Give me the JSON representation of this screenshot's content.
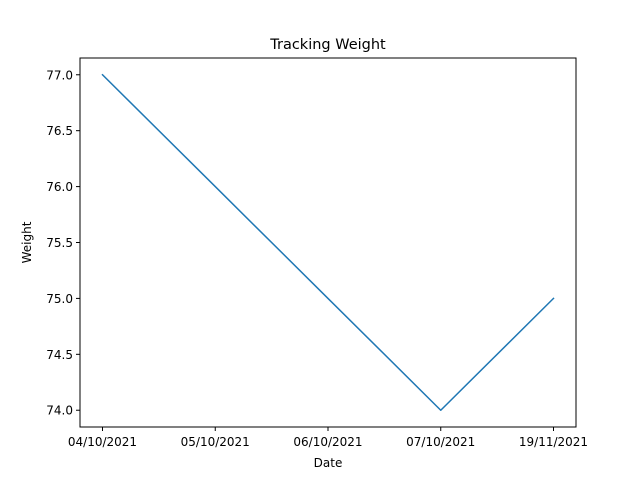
{
  "chart_data": {
    "type": "line",
    "title": "Tracking Weight",
    "xlabel": "Date",
    "ylabel": "Weight",
    "categories": [
      "04/10/2021",
      "05/10/2021",
      "06/10/2021",
      "07/10/2021",
      "19/11/2021"
    ],
    "series": [
      {
        "values": [
          77.0,
          76.0,
          75.0,
          74.0,
          75.0
        ]
      }
    ],
    "ylim": [
      73.85,
      77.15
    ],
    "yticks": [
      "74.0",
      "74.5",
      "75.0",
      "75.5",
      "76.0",
      "76.5",
      "77.0"
    ],
    "grid": false,
    "line_color": "#1f77b4"
  }
}
